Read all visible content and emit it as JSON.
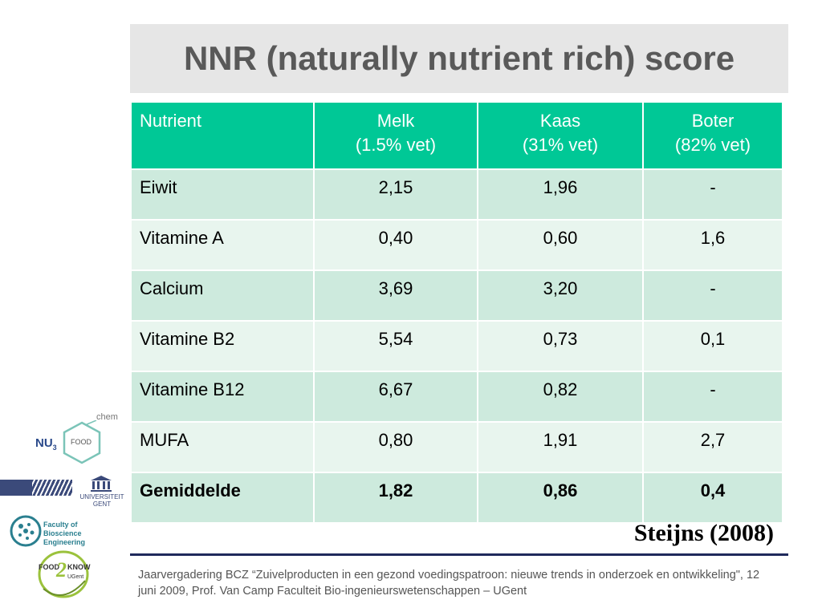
{
  "slide": {
    "title": "NNR (naturally nutrient rich) score",
    "source": "Steijns (2008)",
    "footer": "Jaarvergadering BCZ “Zuivelproducten in een gezond voedingspatroon: nieuwe trends in onderzoek en ontwikkeling\", 12 juni 2009, Prof. Van Camp  Faculteit Bio-ingenieurswetenschappen – UGent"
  },
  "table": {
    "headers": [
      {
        "line1": "Nutrient",
        "line2": ""
      },
      {
        "line1": "Melk",
        "line2": "(1.5% vet)"
      },
      {
        "line1": "Kaas",
        "line2": "(31% vet)"
      },
      {
        "line1": "Boter",
        "line2": "(82% vet)"
      }
    ],
    "rows": [
      [
        "Eiwit",
        "2,15",
        "1,96",
        "-"
      ],
      [
        "Vitamine A",
        "0,40",
        "0,60",
        "1,6"
      ],
      [
        "Calcium",
        "3,69",
        "3,20",
        "-"
      ],
      [
        "Vitamine B2",
        "5,54",
        "0,73",
        "0,1"
      ],
      [
        "Vitamine B12",
        "6,67",
        "0,82",
        "-"
      ],
      [
        "MUFA",
        "0,80",
        "1,91",
        "2,7"
      ],
      [
        "Gemiddelde",
        "1,82",
        "0,86",
        "0,4"
      ]
    ]
  },
  "logos": {
    "nu3": {
      "prefix": "NU",
      "sub": "3",
      "hex": "FOOD",
      "tag": "chem"
    },
    "ugent": {
      "line1": "UNIVERSITEIT",
      "line2": "GENT"
    },
    "faculty": {
      "line1": "Faculty of",
      "line2": "Bioscience Engineering"
    },
    "food2know": {
      "top": "FOOD",
      "mid": "2",
      "right": "KNOW",
      "sub": "UGent"
    }
  },
  "colors": {
    "header": "#00c896",
    "row_odd": "#cdeadd",
    "row_even": "#e8f5ee",
    "title_bg": "#e6e6e6",
    "footer_line": "#1f2a5c"
  }
}
